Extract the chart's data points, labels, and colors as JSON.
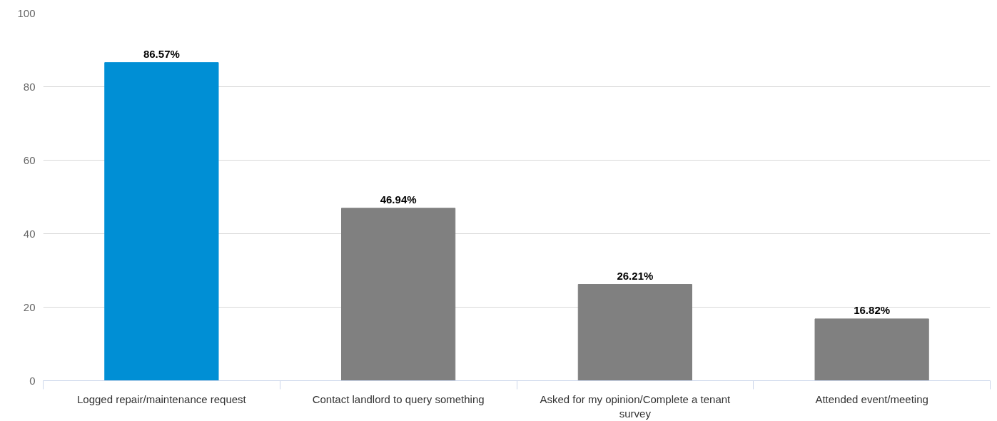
{
  "chart_data": {
    "type": "bar",
    "categories": [
      "Logged repair/maintenance request",
      "Contact landlord to query something",
      "Asked for my opinion/Complete a tenant survey",
      "Attended event/meeting"
    ],
    "values": [
      86.57,
      46.94,
      26.21,
      16.82
    ],
    "colors": [
      "#008fd5",
      "#808080",
      "#808080",
      "#808080"
    ],
    "value_labels": [
      "86.57%",
      "46.94%",
      "26.21%",
      "16.82%"
    ],
    "ylim": [
      0,
      100
    ],
    "yticks": [
      0,
      20,
      40,
      60,
      80,
      100
    ],
    "grid": "y"
  }
}
